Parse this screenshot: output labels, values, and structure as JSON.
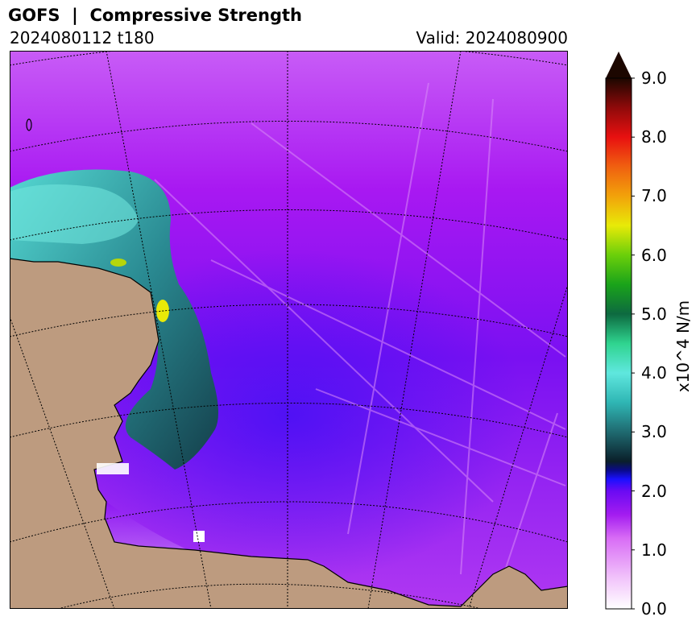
{
  "header": {
    "title": "GOFS  |  Compressive Strength",
    "run": "2024080112 t180",
    "valid": "Valid: 2024080900"
  },
  "colorbar": {
    "label": "x10^4 N/m",
    "ticks": [
      "0.0",
      "1.0",
      "2.0",
      "3.0",
      "4.0",
      "5.0",
      "6.0",
      "7.0",
      "8.0",
      "9.0"
    ],
    "min": 0,
    "max": 9,
    "extend": "max",
    "stops": [
      {
        "v": 0.0,
        "c": "#ffffff"
      },
      {
        "v": 0.5,
        "c": "#f2c6fb"
      },
      {
        "v": 1.2,
        "c": "#d86cf5"
      },
      {
        "v": 1.6,
        "c": "#a31cf0"
      },
      {
        "v": 2.0,
        "c": "#6a0af3"
      },
      {
        "v": 2.2,
        "c": "#1a10ff"
      },
      {
        "v": 2.35,
        "c": "#0a0a8a"
      },
      {
        "v": 2.5,
        "c": "#0a1f2a"
      },
      {
        "v": 3.0,
        "c": "#1f6a70"
      },
      {
        "v": 3.5,
        "c": "#2fb6b4"
      },
      {
        "v": 4.0,
        "c": "#5fe7de"
      },
      {
        "v": 4.5,
        "c": "#2fd48f"
      },
      {
        "v": 5.0,
        "c": "#0d6a40"
      },
      {
        "v": 5.5,
        "c": "#1aa31a"
      },
      {
        "v": 6.0,
        "c": "#6bcf0a"
      },
      {
        "v": 6.5,
        "c": "#e8ea08"
      },
      {
        "v": 7.0,
        "c": "#f2a20a"
      },
      {
        "v": 7.5,
        "c": "#f06010"
      },
      {
        "v": 8.0,
        "c": "#e81010"
      },
      {
        "v": 8.5,
        "c": "#8f0a0a"
      },
      {
        "v": 9.0,
        "c": "#1c0700"
      }
    ]
  },
  "map": {
    "land_color": "#bd9b7f",
    "ocean_field_color": "#a214f3",
    "high_strength_color": "#2a9a9c",
    "graticule_color": "#000000"
  }
}
